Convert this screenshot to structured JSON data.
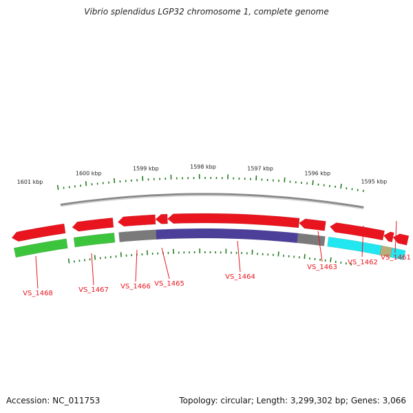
{
  "title": "Vibrio splendidus LGP32 chromosome 1, complete genome",
  "footer": {
    "accession": "Accession: NC_011753",
    "stats": "Topology: circular; Length: 3,299,302 bp; Genes: 3,066"
  },
  "scale": {
    "labels": [
      "1601 kbp",
      "1600 kbp",
      "1599 kbp",
      "1598 kbp",
      "1597 kbp",
      "1596 kbp",
      "1595 kbp"
    ]
  },
  "colors": {
    "forward": "#e8141e",
    "tick": "#1f7a1f",
    "backbone": "#8c8c8c",
    "label": "#e8141e",
    "cog_green": "#3cc43c",
    "cog_gray": "#7a7a7a",
    "cog_purple": "#4b3f9a",
    "cog_cyan": "#22e6f0",
    "cog_tan": "#b8ae78"
  },
  "genes": [
    {
      "label": "VS_1468"
    },
    {
      "label": "VS_1467"
    },
    {
      "label": "VS_1466"
    },
    {
      "label": "VS_1465"
    },
    {
      "label": "VS_1464"
    },
    {
      "label": "VS_1463"
    },
    {
      "label": "VS_1462"
    },
    {
      "label": "VS_1461"
    }
  ]
}
